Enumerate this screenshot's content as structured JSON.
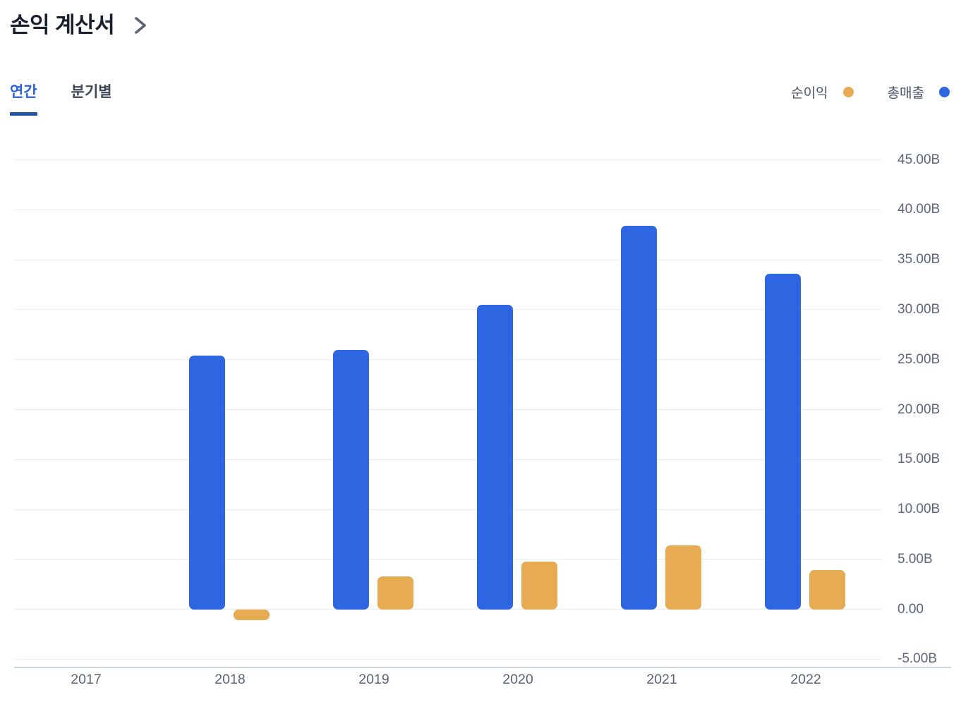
{
  "header": {
    "title": "손익 계산서"
  },
  "tabs": [
    {
      "label": "연간",
      "active": true
    },
    {
      "label": "분기별",
      "active": false
    }
  ],
  "legend": [
    {
      "label": "순이익",
      "color": "#E6AB53"
    },
    {
      "label": "총매출",
      "color": "#2E66E2"
    }
  ],
  "chart_data": {
    "type": "bar",
    "title": "손익 계산서",
    "categories": [
      "2017",
      "2018",
      "2019",
      "2020",
      "2021",
      "2022"
    ],
    "series": [
      {
        "name": "순이익",
        "color": "#E6AB53",
        "values": [
          null,
          -1.1,
          3.3,
          4.8,
          6.4,
          3.9
        ]
      },
      {
        "name": "총매출",
        "color": "#2E66E2",
        "values": [
          null,
          25.4,
          26.0,
          30.5,
          38.4,
          33.6
        ]
      }
    ],
    "unit": "B",
    "ylim": [
      -5,
      45
    ],
    "ytick_step": 5,
    "ytick_labels": [
      "45.00B",
      "40.00B",
      "35.00B",
      "30.00B",
      "25.00B",
      "20.00B",
      "15.00B",
      "10.00B",
      "5.00B",
      "0.00",
      "-5.00B"
    ],
    "grid": "horizontal",
    "legend_position": "top-right"
  }
}
